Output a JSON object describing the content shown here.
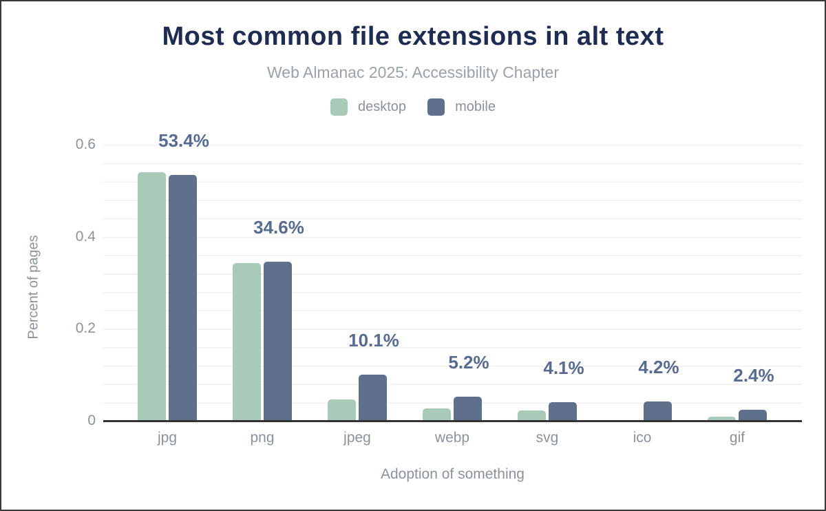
{
  "header": {
    "title": "Most common file extensions in alt text",
    "subtitle": "Web Almanac 2025: Accessibility Chapter"
  },
  "legend": [
    {
      "label": "desktop",
      "color": "#a9cab9"
    },
    {
      "label": "mobile",
      "color": "#5f708c"
    }
  ],
  "chart_data": {
    "type": "bar",
    "title": "Most common file extensions in alt text",
    "subtitle": "Web Almanac 2025: Accessibility Chapter",
    "categories": [
      "jpg",
      "png",
      "jpeg",
      "webp",
      "svg",
      "ico",
      "gif"
    ],
    "series": [
      {
        "name": "desktop",
        "color": "#a9cab9",
        "values": [
          0.54,
          0.343,
          0.047,
          0.027,
          0.023,
          0,
          0.009
        ]
      },
      {
        "name": "mobile",
        "color": "#5f708c",
        "values": [
          0.534,
          0.346,
          0.101,
          0.052,
          0.041,
          0.042,
          0.024
        ]
      }
    ],
    "data_labels": [
      "53.4%",
      "34.6%",
      "10.1%",
      "5.2%",
      "4.1%",
      "4.2%",
      "2.4%"
    ],
    "data_label_series": "mobile",
    "xlabel": "Adoption of something",
    "ylabel": "Percent of pages",
    "ylim": [
      0,
      0.6
    ],
    "yticks": [
      0,
      0.2,
      0.4,
      0.6
    ],
    "ytick_labels": [
      "0",
      "0.2",
      "0.4",
      "0.6"
    ],
    "grid": "horizontal-minor",
    "grid_minor_step": 0.04,
    "legend_position": "top"
  },
  "colors": {
    "title": "#1e2c52",
    "subtitle": "#9aa1a9",
    "axis_text": "#8b929b",
    "data_label": "#576b90",
    "axis_line": "#333333",
    "gridline": "#f0f0f0",
    "background": "#ffffff"
  }
}
